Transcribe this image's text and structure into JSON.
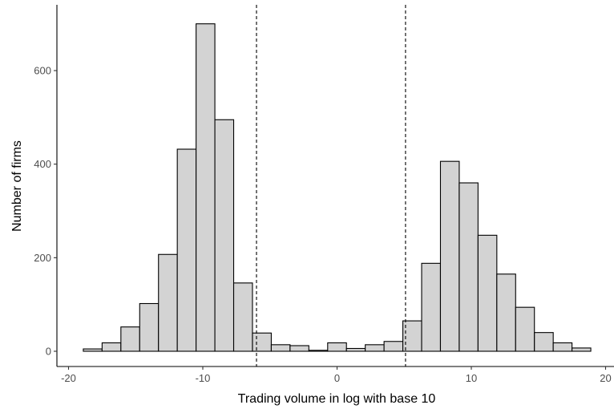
{
  "chart_data": {
    "type": "bar",
    "title": "",
    "xlabel": "Trading volume in log with base 10",
    "ylabel": "Number of firms",
    "xlim": [
      -20,
      20
    ],
    "ylim": [
      0,
      700
    ],
    "xticks": [
      -20,
      -10,
      0,
      10,
      20
    ],
    "yticks": [
      0,
      200,
      400,
      600
    ],
    "bin_width": 1.4,
    "bins": [
      {
        "x": -18.2,
        "count": 5
      },
      {
        "x": -16.8,
        "count": 18
      },
      {
        "x": -15.4,
        "count": 52
      },
      {
        "x": -14.0,
        "count": 102
      },
      {
        "x": -12.6,
        "count": 207
      },
      {
        "x": -11.2,
        "count": 432
      },
      {
        "x": -9.8,
        "count": 700
      },
      {
        "x": -8.4,
        "count": 495
      },
      {
        "x": -7.0,
        "count": 146
      },
      {
        "x": -5.6,
        "count": 39
      },
      {
        "x": -4.2,
        "count": 14
      },
      {
        "x": -2.8,
        "count": 12
      },
      {
        "x": -1.4,
        "count": 2
      },
      {
        "x": 0.0,
        "count": 18
      },
      {
        "x": 1.4,
        "count": 6
      },
      {
        "x": 2.8,
        "count": 14
      },
      {
        "x": 4.2,
        "count": 21
      },
      {
        "x": 5.6,
        "count": 65
      },
      {
        "x": 7.0,
        "count": 188
      },
      {
        "x": 8.4,
        "count": 406
      },
      {
        "x": 9.8,
        "count": 360
      },
      {
        "x": 11.2,
        "count": 248
      },
      {
        "x": 12.6,
        "count": 165
      },
      {
        "x": 14.0,
        "count": 94
      },
      {
        "x": 15.4,
        "count": 40
      },
      {
        "x": 16.8,
        "count": 18
      },
      {
        "x": 18.2,
        "count": 7
      }
    ],
    "reference_lines": [
      -6.0,
      5.1
    ],
    "reference_line_style": "dashed",
    "grid": false,
    "bar_fill": "#d3d3d3",
    "bar_stroke": "#000000"
  }
}
